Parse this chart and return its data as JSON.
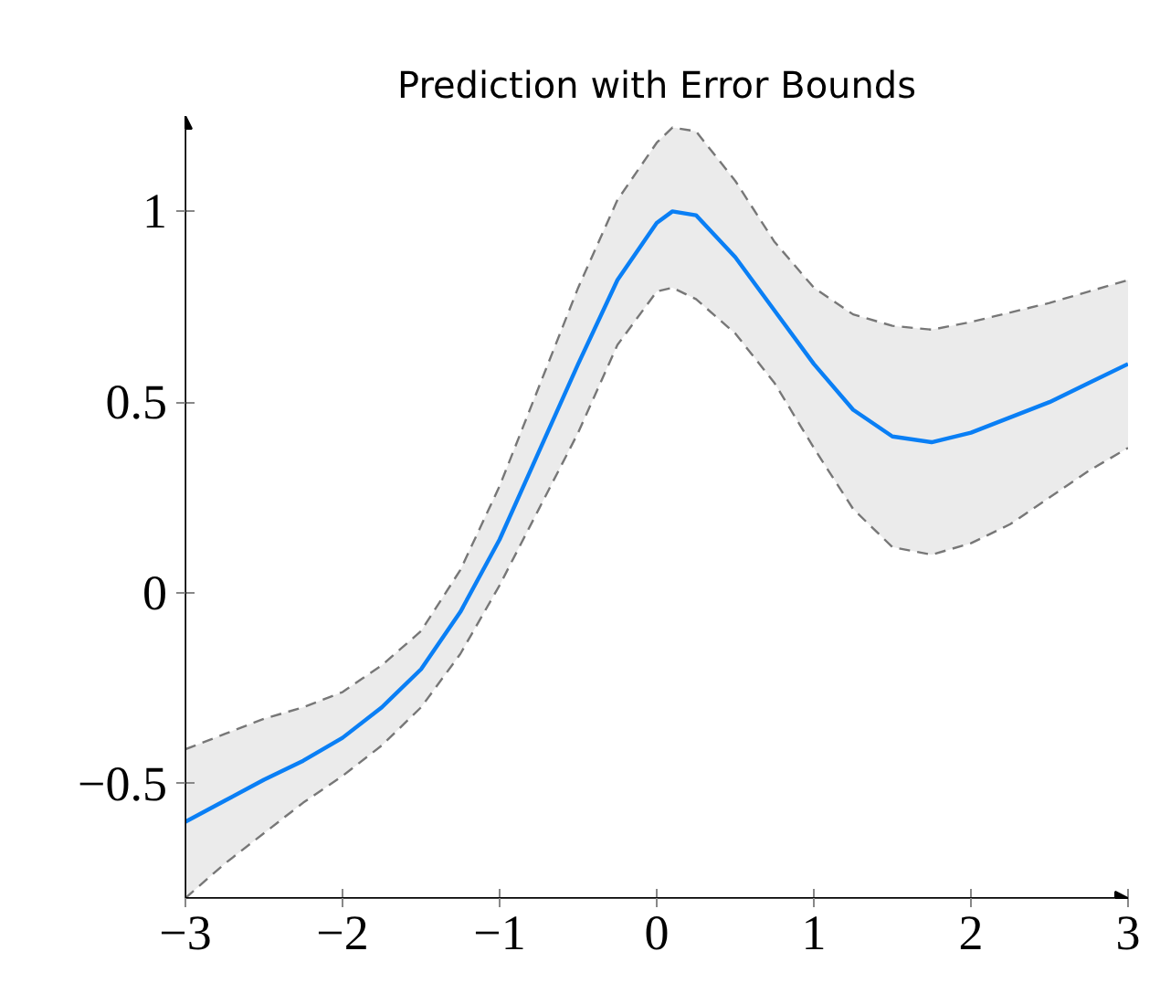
{
  "chart_data": {
    "type": "line",
    "title": "Prediction with Error Bounds",
    "x": [
      -3,
      -2.75,
      -2.5,
      -2.25,
      -2,
      -1.75,
      -1.5,
      -1.25,
      -1,
      -0.75,
      -0.5,
      -0.25,
      0,
      0.1,
      0.25,
      0.5,
      0.75,
      1,
      1.25,
      1.5,
      1.75,
      2,
      2.25,
      2.5,
      2.75,
      3
    ],
    "series": [
      {
        "color": "#0a7ff5",
        "values": [
          -0.6,
          -0.545,
          -0.49,
          -0.44,
          -0.38,
          -0.3,
          -0.2,
          -0.05,
          0.14,
          0.37,
          0.6,
          0.82,
          0.97,
          1.0,
          0.99,
          0.88,
          0.74,
          0.6,
          0.48,
          0.41,
          0.395,
          0.42,
          0.46,
          0.5,
          0.55,
          0.6
        ],
        "upper": [
          -0.41,
          -0.37,
          -0.33,
          -0.3,
          -0.26,
          -0.19,
          -0.1,
          0.06,
          0.28,
          0.54,
          0.8,
          1.03,
          1.18,
          1.22,
          1.21,
          1.08,
          0.92,
          0.8,
          0.73,
          0.7,
          0.69,
          0.71,
          0.735,
          0.76,
          0.79,
          0.82
        ],
        "lower": [
          -0.8,
          -0.71,
          -0.63,
          -0.55,
          -0.48,
          -0.4,
          -0.3,
          -0.16,
          0.02,
          0.22,
          0.42,
          0.65,
          0.79,
          0.8,
          0.77,
          0.68,
          0.55,
          0.38,
          0.22,
          0.12,
          0.1,
          0.13,
          0.18,
          0.25,
          0.32,
          0.38
        ]
      },
      {
        "color": "#777777",
        "line_style": "dashed",
        "values": [
          -0.41,
          -0.37,
          -0.33,
          -0.3,
          -0.26,
          -0.19,
          -0.1,
          0.06,
          0.28,
          0.54,
          0.8,
          1.03,
          1.18,
          1.22,
          1.21,
          1.08,
          0.92,
          0.8,
          0.73,
          0.7,
          0.69,
          0.71,
          0.735,
          0.76,
          0.79,
          0.82
        ]
      },
      {
        "color": "#777777",
        "line_style": "dashed",
        "values": [
          -0.8,
          -0.71,
          -0.63,
          -0.55,
          -0.48,
          -0.4,
          -0.3,
          -0.16,
          0.02,
          0.22,
          0.42,
          0.65,
          0.79,
          0.8,
          0.77,
          0.68,
          0.55,
          0.38,
          0.22,
          0.12,
          0.1,
          0.13,
          0.18,
          0.25,
          0.32,
          0.38
        ]
      }
    ],
    "xlim": [
      -3,
      3
    ],
    "ylim": [
      -0.8,
      1.25
    ],
    "xticks": [
      {
        "value": -3,
        "label": "−3"
      },
      {
        "value": -2,
        "label": "−2"
      },
      {
        "value": -1,
        "label": "−1"
      },
      0,
      1,
      2,
      3
    ],
    "yticks": [
      {
        "value": -0.5,
        "label": "−0.5"
      },
      0,
      0.5,
      1
    ],
    "grid": false,
    "marker": "none",
    "line_style": "solid"
  }
}
